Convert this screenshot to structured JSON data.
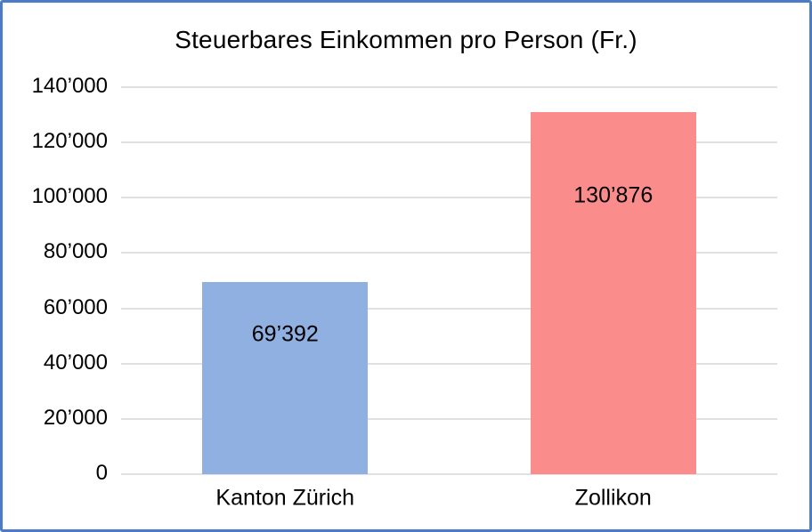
{
  "chart_data": {
    "type": "bar",
    "title": "Steuerbares Einkommen pro Person (Fr.)",
    "categories": [
      "Kanton Zürich",
      "Zollikon"
    ],
    "values": [
      69392,
      130876
    ],
    "value_labels": [
      "69’392",
      "130’876"
    ],
    "bar_colors": [
      "#8FB0E0",
      "#FB8C8C"
    ],
    "ylim": [
      0,
      140000
    ],
    "ytick_interval": 20000,
    "ytick_labels": [
      "0",
      "20’000",
      "40’000",
      "60’000",
      "80’000",
      "100’000",
      "120’000",
      "140’000"
    ],
    "xlabel": "",
    "ylabel": "",
    "grid": true,
    "legend": false
  },
  "frame": {
    "border_color": "#4A7CC7",
    "background_color": "#FFFFFF",
    "gridline_color": "#E0E0E0",
    "text_color": "#000000"
  }
}
